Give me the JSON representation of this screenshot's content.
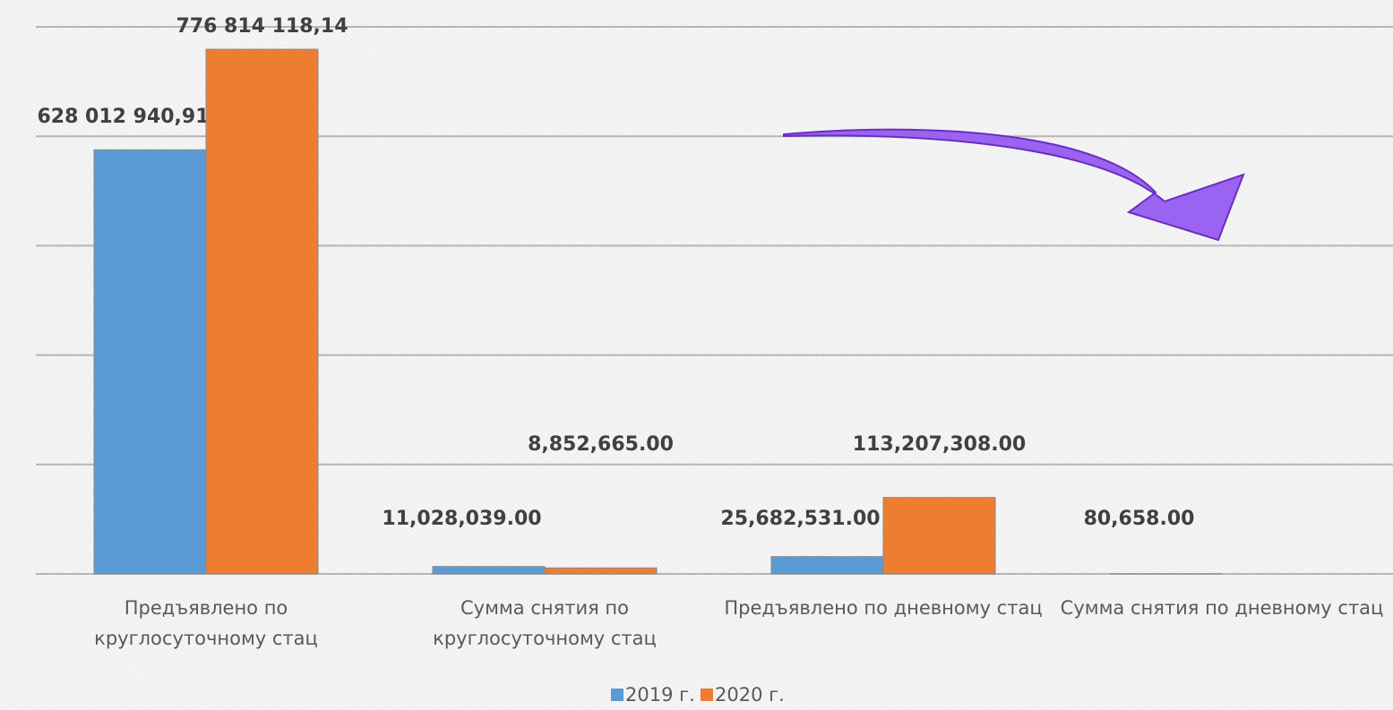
{
  "chart_data": {
    "type": "bar",
    "categories": [
      "Предъявлено по круглосуточному стац",
      "Сумма снятия по круглосуточному стац",
      "Предъявлено по дневному стац",
      "Сумма снятия по дневному стац"
    ],
    "series": [
      {
        "name": "2019 г.",
        "color": "#5b9bd5",
        "values": [
          628012940.91,
          11028039,
          25682531,
          80658
        ],
        "value_labels": [
          "628 012 940,91",
          "11,028,039.00",
          "25,682,531.00",
          "80,658.00"
        ]
      },
      {
        "name": "2020 г.",
        "color": "#ed7d31",
        "values": [
          776814118.14,
          8852665,
          113207308,
          null
        ],
        "value_labels": [
          "776 814 118,14",
          "8,852,665.00",
          "113,207,308.00",
          null
        ]
      }
    ],
    "ylim": [
      0,
      810000000
    ],
    "yticks": [
      0,
      162000000,
      324000000,
      486000000,
      648000000,
      810000000
    ],
    "grid": true,
    "legend": "bottom"
  }
}
